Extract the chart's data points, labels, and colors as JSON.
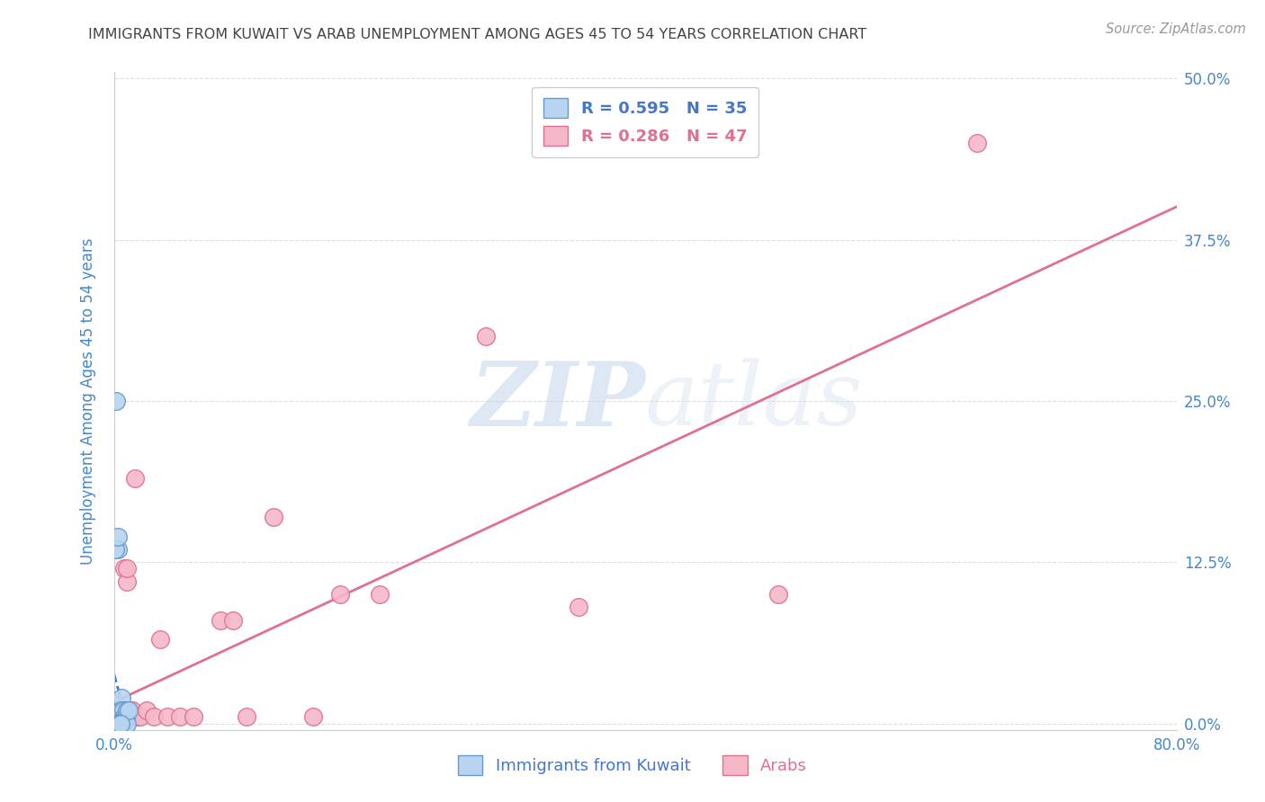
{
  "title": "IMMIGRANTS FROM KUWAIT VS ARAB UNEMPLOYMENT AMONG AGES 45 TO 54 YEARS CORRELATION CHART",
  "source": "Source: ZipAtlas.com",
  "ylabel_label": "Unemployment Among Ages 45 to 54 years",
  "xlim": [
    0.0,
    0.8
  ],
  "ylim": [
    -0.005,
    0.505
  ],
  "yticks": [
    0.0,
    0.125,
    0.25,
    0.375,
    0.5
  ],
  "xticks": [
    0.0,
    0.2,
    0.4,
    0.6,
    0.8
  ],
  "ytick_labels": [
    "0.0%",
    "12.5%",
    "25.0%",
    "37.5%",
    "50.0%"
  ],
  "xtick_labels": [
    "0.0%",
    "",
    "",
    "",
    "80.0%"
  ],
  "kuwait_color": "#b8d4f0",
  "arab_color": "#f5b8c8",
  "kuwait_edge_color": "#6699cc",
  "arab_edge_color": "#e07090",
  "trendline_kuwait_color": "#4477cc",
  "trendline_arab_color": "#e07090",
  "R_kuwait": 0.595,
  "N_kuwait": 35,
  "R_arab": 0.286,
  "N_arab": 47,
  "kuwait_x": [
    0.001,
    0.001,
    0.001,
    0.001,
    0.002,
    0.002,
    0.002,
    0.002,
    0.002,
    0.003,
    0.003,
    0.003,
    0.003,
    0.004,
    0.004,
    0.004,
    0.005,
    0.005,
    0.006,
    0.006,
    0.007,
    0.007,
    0.008,
    0.009,
    0.01,
    0.01,
    0.011,
    0.001,
    0.002,
    0.003,
    0.001,
    0.002,
    0.003,
    0.004,
    0.005
  ],
  "kuwait_y": [
    0.0,
    0.0,
    0.002,
    0.0,
    0.0,
    0.005,
    0.01,
    0.015,
    0.0,
    0.01,
    0.01,
    0.135,
    0.0,
    0.01,
    0.005,
    0.0,
    0.01,
    0.0,
    0.02,
    0.01,
    0.01,
    0.0,
    0.005,
    0.005,
    0.01,
    0.0,
    0.01,
    0.135,
    0.25,
    0.145,
    0.0,
    0.0,
    0.0,
    0.0,
    0.0
  ],
  "arab_x": [
    0.001,
    0.001,
    0.001,
    0.002,
    0.002,
    0.002,
    0.002,
    0.003,
    0.003,
    0.003,
    0.003,
    0.004,
    0.004,
    0.005,
    0.005,
    0.005,
    0.006,
    0.006,
    0.007,
    0.008,
    0.01,
    0.01,
    0.011,
    0.012,
    0.013,
    0.014,
    0.015,
    0.016,
    0.018,
    0.02,
    0.025,
    0.03,
    0.035,
    0.04,
    0.05,
    0.06,
    0.08,
    0.09,
    0.1,
    0.12,
    0.15,
    0.17,
    0.2,
    0.28,
    0.35,
    0.5,
    0.65
  ],
  "arab_y": [
    0.0,
    0.005,
    0.01,
    0.0,
    0.005,
    0.01,
    0.005,
    0.005,
    0.01,
    0.01,
    0.005,
    0.01,
    0.01,
    0.005,
    0.01,
    0.005,
    0.01,
    0.005,
    0.01,
    0.12,
    0.11,
    0.12,
    0.01,
    0.01,
    0.005,
    0.01,
    0.005,
    0.19,
    0.005,
    0.005,
    0.01,
    0.005,
    0.065,
    0.005,
    0.005,
    0.005,
    0.08,
    0.08,
    0.005,
    0.16,
    0.005,
    0.1,
    0.1,
    0.3,
    0.09,
    0.1,
    0.45
  ],
  "legend_labels": [
    "Immigrants from Kuwait",
    "Arabs"
  ],
  "watermark_zip": "ZIP",
  "watermark_atlas": "atlas",
  "background_color": "#ffffff",
  "title_color": "#444444",
  "axis_label_color": "#4488cc",
  "tick_color": "#4488cc",
  "grid_color": "#dddddd",
  "title_fontsize": 11.5,
  "tick_fontsize": 12,
  "legend_fontsize": 13
}
